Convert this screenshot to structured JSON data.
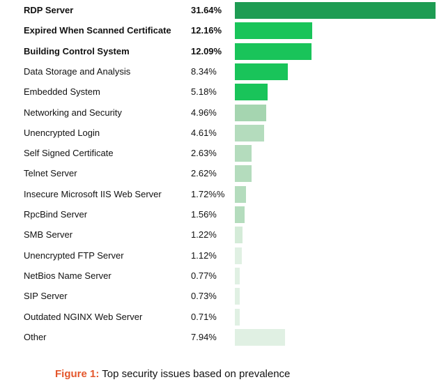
{
  "chart_data": {
    "type": "bar",
    "orientation": "horizontal",
    "categories": [
      "RDP Server",
      "Expired When Scanned Certificate",
      "Building Control System",
      "Data Storage and Analysis",
      "Embedded System",
      "Networking and Security",
      "Unencrypted Login",
      "Self Signed Certificate",
      "Telnet Server",
      "Insecure Microsoft IIS Web Server",
      "RpcBind Server",
      "SMB Server",
      "Unencrypted FTP Server",
      "NetBios Name Server",
      "SIP Server",
      "Outdated NGINX Web Server",
      "Other"
    ],
    "values": [
      31.64,
      12.16,
      12.09,
      8.34,
      5.18,
      4.96,
      4.61,
      2.63,
      2.62,
      1.72,
      1.56,
      1.22,
      1.12,
      0.77,
      0.73,
      0.71,
      7.94
    ],
    "value_labels": [
      "31.64%",
      "12.16%",
      "12.09%",
      "8.34%",
      "5.18%",
      "4.96%",
      "4.61%",
      "2.63%",
      "2.62%",
      "1.72%%",
      "1.56%",
      "1.22%",
      "1.12%",
      "0.77%",
      "0.73%",
      "0.71%",
      "7.94%"
    ],
    "bold_rows": [
      0,
      1,
      2
    ],
    "bar_colors": [
      "#1e9c53",
      "#19c45a",
      "#19c45a",
      "#19c45a",
      "#19c45a",
      "#a5d5b0",
      "#b4dcbd",
      "#b4dcbd",
      "#b4dcbd",
      "#b4dcbd",
      "#b4dcbd",
      "#d4ebd8",
      "#e0f0e3",
      "#e0f0e3",
      "#e0f0e3",
      "#e0f0e3",
      "#e0f0e3"
    ],
    "xlim": [
      0,
      31.64
    ],
    "grid": false,
    "legend": "none"
  },
  "caption": {
    "figure_label": "Figure 1:",
    "text": " Top security issues based on prevalence"
  }
}
